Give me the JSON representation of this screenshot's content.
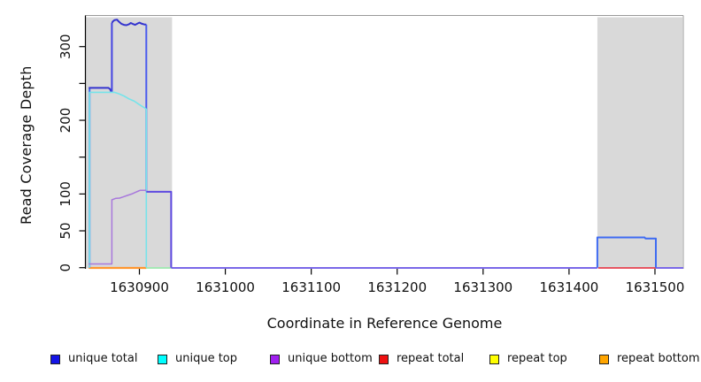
{
  "chart_data": {
    "type": "line",
    "title": "",
    "xlabel": "Coordinate in Reference Genome",
    "ylabel": "Read Coverage Depth",
    "xlim": [
      1630837,
      1631533
    ],
    "ylim": [
      0,
      345
    ],
    "grid": false,
    "x_axis": {
      "ticks": [
        1630900,
        1631000,
        1631100,
        1631200,
        1631300,
        1631400,
        1631500
      ],
      "labels": [
        "1630900",
        "1631000",
        "1631100",
        "1631200",
        "1631300",
        "1631400",
        "1631500"
      ]
    },
    "y_axis": {
      "ticks": [
        0,
        50,
        100,
        150,
        200,
        250,
        300
      ],
      "labels": [
        "0",
        "50",
        "100",
        "",
        "200",
        "",
        "300"
      ]
    },
    "highlight_regions": [
      {
        "name": "left-repeat-region",
        "x0": 1630837,
        "x1": 1630938
      },
      {
        "name": "right-repeat-region",
        "x0": 1631433,
        "x1": 1631532
      }
    ],
    "zero_baseline_segments": [
      {
        "name": "zero-unique-mid",
        "color": "#7A68E8",
        "width": 2,
        "x0": 1630937,
        "x1": 1631433
      },
      {
        "name": "zero-unique-right",
        "color": "#7A68E8",
        "width": 2,
        "x0": 1631501,
        "x1": 1631533
      },
      {
        "name": "zero-green-left",
        "color": "#A5E8B5",
        "width": 2,
        "x0": 1630908,
        "x1": 1630937
      },
      {
        "name": "zero-repeat-total",
        "color": "#E6404E",
        "width": 1.8,
        "x0": 1631434,
        "x1": 1631501
      },
      {
        "name": "zero-repeat-bottom",
        "color": "#FF962E",
        "width": 2.2,
        "x0": 1630841,
        "x1": 1630908
      }
    ],
    "series": [
      {
        "name": "unique-total-rise-left",
        "color": "#3E68F2",
        "width": 2,
        "points": [
          [
            1630842,
            0
          ],
          [
            1630842,
            244
          ]
        ]
      },
      {
        "name": "unique-total-plateau-245",
        "color": "#3434CE",
        "width": 2,
        "points": [
          [
            1630841,
            244
          ],
          [
            1630864,
            244
          ],
          [
            1630866,
            242
          ],
          [
            1630867,
            239
          ],
          [
            1630868,
            239
          ]
        ]
      },
      {
        "name": "unique-total-jump",
        "color": "#4444E2",
        "width": 2,
        "points": [
          [
            1630868,
            238
          ],
          [
            1630868,
            332
          ]
        ]
      },
      {
        "name": "unique-total-peak",
        "color": "#3434CE",
        "width": 2,
        "points": [
          [
            1630868,
            332
          ],
          [
            1630869,
            334
          ],
          [
            1630871,
            336
          ],
          [
            1630874,
            336.5
          ],
          [
            1630876,
            334
          ],
          [
            1630879,
            331
          ],
          [
            1630882,
            329.5
          ],
          [
            1630885,
            329
          ],
          [
            1630888,
            330.5
          ],
          [
            1630890,
            332
          ],
          [
            1630892,
            331
          ],
          [
            1630895,
            329.5
          ],
          [
            1630898,
            331.5
          ],
          [
            1630900,
            332.5
          ],
          [
            1630903,
            331
          ],
          [
            1630906,
            330
          ],
          [
            1630908,
            330
          ]
        ]
      },
      {
        "name": "unique-total-drop",
        "color": "#4A5BEE",
        "width": 2,
        "points": [
          [
            1630908,
            330
          ],
          [
            1630908,
            103
          ]
        ]
      },
      {
        "name": "unique-top",
        "color": "#76E4EA",
        "width": 1.6,
        "points": [
          [
            1630842,
            0
          ],
          [
            1630842,
            238
          ],
          [
            1630871,
            238
          ],
          [
            1630876,
            236
          ],
          [
            1630882,
            233
          ],
          [
            1630888,
            229
          ],
          [
            1630894,
            226
          ],
          [
            1630899,
            222
          ],
          [
            1630903,
            219
          ],
          [
            1630906,
            217
          ],
          [
            1630908,
            215
          ],
          [
            1630908,
            0
          ]
        ]
      },
      {
        "name": "unique-bottom",
        "color": "#A878DC",
        "width": 1.5,
        "points": [
          [
            1630841,
            5
          ],
          [
            1630868,
            5
          ],
          [
            1630868,
            92
          ],
          [
            1630872,
            94
          ],
          [
            1630877,
            94.5
          ],
          [
            1630881,
            96
          ],
          [
            1630886,
            98
          ],
          [
            1630891,
            100
          ],
          [
            1630895,
            102
          ],
          [
            1630899,
            104
          ],
          [
            1630901,
            105
          ],
          [
            1630908,
            105
          ]
        ]
      },
      {
        "name": "unique-combined-103",
        "color": "#5E49E0",
        "width": 2,
        "points": [
          [
            1630908,
            103
          ],
          [
            1630937,
            103
          ],
          [
            1630937,
            0
          ]
        ]
      },
      {
        "name": "unique-total-right-block",
        "color": "#3E6BF2",
        "width": 2,
        "points": [
          [
            1631433,
            0
          ],
          [
            1631433,
            41
          ],
          [
            1631488,
            41
          ],
          [
            1631489,
            39.5
          ],
          [
            1631501,
            39.5
          ],
          [
            1631501,
            0
          ]
        ]
      }
    ],
    "legend": {
      "position": "bottom",
      "items": [
        {
          "label": "unique total",
          "color": "#1414E6"
        },
        {
          "label": "unique top",
          "color": "#00FFFF"
        },
        {
          "label": "unique bottom",
          "color": "#A020F0"
        },
        {
          "label": "repeat total",
          "color": "#EE1111"
        },
        {
          "label": "repeat top",
          "color": "#FFFF00"
        },
        {
          "label": "repeat bottom",
          "color": "#FFA500"
        }
      ]
    }
  },
  "colors": {
    "background": "#FFFFFF",
    "highlight_region_fill": "#D9D9D9",
    "plot_box_border": "#999999",
    "axis_line": "#000000",
    "tick_text": "#111111"
  }
}
